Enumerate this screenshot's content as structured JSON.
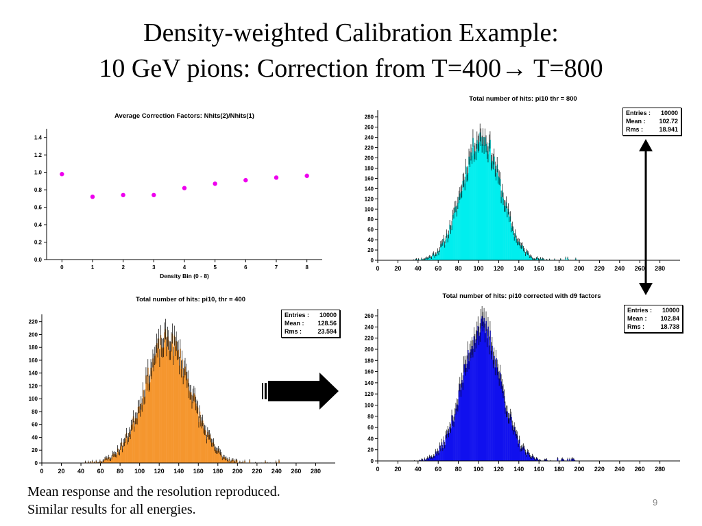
{
  "slide": {
    "title_line1": "Density-weighted Calibration Example:",
    "title_line2": "10 GeV pions: Correction from T=400→ T=800",
    "footer_line1": "Mean response and the resolution reproduced.",
    "footer_line2": "Similar results for all energies.",
    "page_number": "9"
  },
  "chart_data": [
    {
      "id": "correction_factors",
      "type": "scatter",
      "title": "Average Correction Factors: Nhits(2)/Nhits(1)",
      "xlabel": "Density Bin (0 - 8)",
      "ylabel": "",
      "x": [
        0,
        1,
        2,
        3,
        4,
        5,
        6,
        7,
        8
      ],
      "y": [
        0.98,
        0.72,
        0.74,
        0.74,
        0.82,
        0.87,
        0.91,
        0.94,
        0.96
      ],
      "xlim": [
        -0.5,
        8.5
      ],
      "ylim": [
        0,
        1.5
      ],
      "x_ticks": [
        0,
        1,
        2,
        3,
        4,
        5,
        6,
        7,
        8
      ],
      "y_ticks": [
        0.0,
        0.2,
        0.4,
        0.6,
        0.8,
        1.0,
        1.2,
        1.4
      ],
      "y_tick_labels": [
        "0.0",
        "0.2",
        "0.4",
        "0.6",
        "0.8",
        "1.0",
        "1.2",
        "1.4"
      ],
      "marker_color": "#ee00ee"
    },
    {
      "id": "hits_thr800",
      "type": "bar",
      "title": "Total number of hits: pi10 thr = 800",
      "fill_color": "#00eeee",
      "xlim": [
        0,
        300
      ],
      "ylim": [
        0,
        285
      ],
      "x_ticks": [
        0,
        20,
        40,
        60,
        80,
        100,
        120,
        140,
        160,
        180,
        200,
        220,
        240,
        260,
        280
      ],
      "y_ticks": [
        0,
        20,
        40,
        60,
        80,
        100,
        120,
        140,
        160,
        180,
        200,
        220,
        240,
        260,
        280
      ],
      "stats": {
        "entries_label": "Entries :",
        "entries": "10000",
        "mean_label": "Mean :",
        "mean": "102.72",
        "rms_label": "Rms :",
        "rms": "18.941"
      },
      "distribution": {
        "mean": 102.72,
        "rms": 18.941,
        "peak": 240
      }
    },
    {
      "id": "hits_thr400",
      "type": "bar",
      "title": "Total number of hits: pi10, thr = 400",
      "fill_color": "#f5962e",
      "xlim": [
        0,
        300
      ],
      "ylim": [
        0,
        225
      ],
      "x_ticks": [
        0,
        20,
        40,
        60,
        80,
        100,
        120,
        140,
        160,
        180,
        200,
        220,
        240,
        260,
        280
      ],
      "y_ticks": [
        0,
        20,
        40,
        60,
        80,
        100,
        120,
        140,
        160,
        180,
        200,
        220
      ],
      "stats": {
        "entries_label": "Entries :",
        "entries": "10000",
        "mean_label": "Mean :",
        "mean": "128.56",
        "rms_label": "Rms :",
        "rms": "23.594"
      },
      "distribution": {
        "mean": 128.56,
        "rms": 23.594,
        "peak": 190
      }
    },
    {
      "id": "hits_corrected",
      "type": "bar",
      "title": "Total number of hits: pi10 corrected with d9 factors",
      "fill_color": "#1010ee",
      "xlim": [
        0,
        300
      ],
      "ylim": [
        0,
        265
      ],
      "x_ticks": [
        0,
        20,
        40,
        60,
        80,
        100,
        120,
        140,
        160,
        180,
        200,
        220,
        240,
        260,
        280
      ],
      "y_ticks": [
        0,
        20,
        40,
        60,
        80,
        100,
        120,
        140,
        160,
        180,
        200,
        220,
        240,
        260
      ],
      "stats": {
        "entries_label": "Entries :",
        "entries": "10000",
        "mean_label": "Mean :",
        "mean": "102.84",
        "rms_label": "Rms :",
        "rms": "18.738"
      },
      "distribution": {
        "mean": 102.84,
        "rms": 18.738,
        "peak": 240
      }
    }
  ]
}
